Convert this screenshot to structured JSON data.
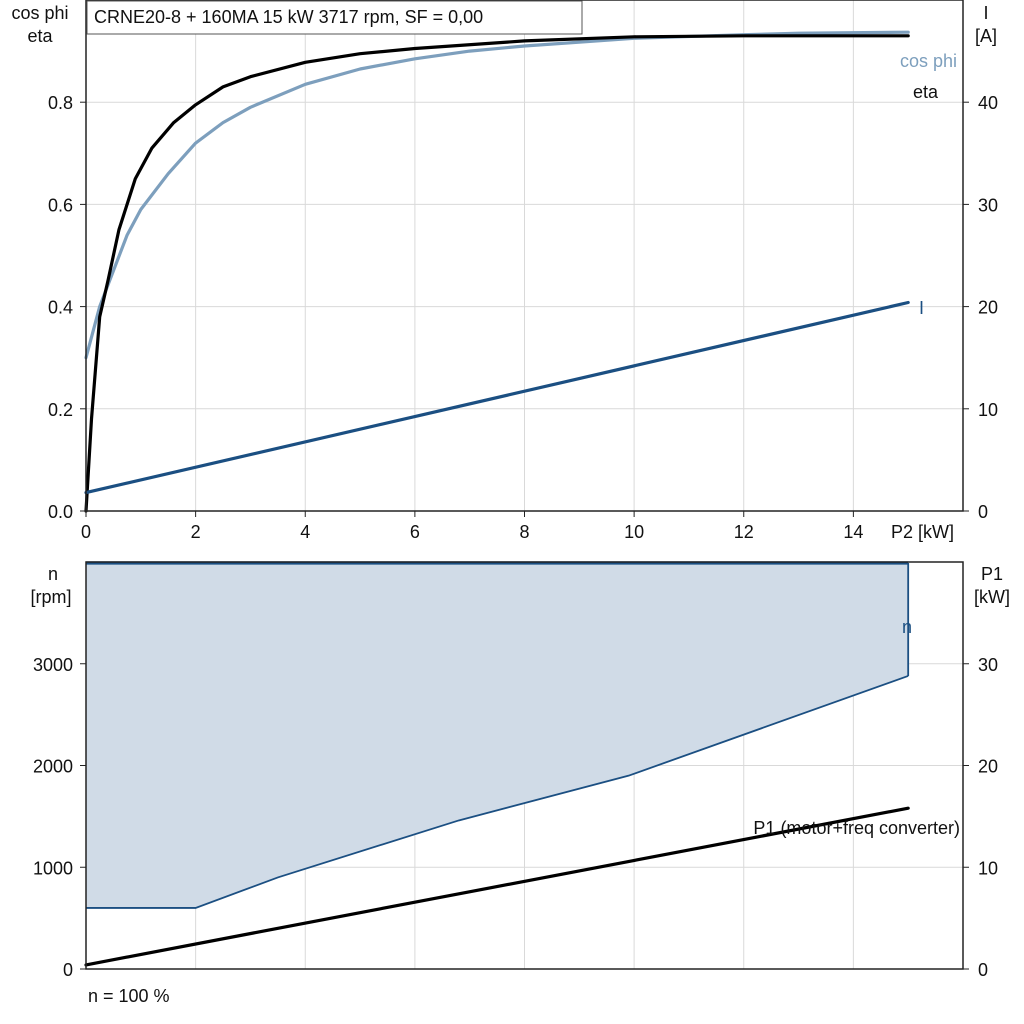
{
  "chart_data": [
    {
      "type": "line",
      "title": "CRNE20-8 + 160MA   15 kW   3717 rpm, SF = 0,00",
      "xlabel": "P2 [kW]",
      "xlim": [
        0,
        16
      ],
      "xticks": [
        "0",
        "2",
        "4",
        "6",
        "8",
        "10",
        "12",
        "14"
      ],
      "ylabel_left": [
        "cos phi",
        "eta"
      ],
      "ylim_left": [
        0,
        1.0
      ],
      "yticks_left": [
        "0.0",
        "0.2",
        "0.4",
        "0.6",
        "0.8"
      ],
      "ylabel_right": [
        "I",
        "[A]"
      ],
      "ylim_right": [
        0,
        50
      ],
      "yticks_right": [
        "0",
        "10",
        "20",
        "30",
        "40"
      ],
      "grid": true,
      "series": [
        {
          "name": "cos phi",
          "axis": "left",
          "color": "#7d9fbd",
          "x": [
            0,
            0.25,
            0.5,
            0.75,
            1,
            1.5,
            2,
            2.5,
            3,
            4,
            5,
            6,
            7,
            8,
            10,
            12,
            13,
            15
          ],
          "y": [
            0.3,
            0.4,
            0.47,
            0.54,
            0.59,
            0.66,
            0.72,
            0.76,
            0.79,
            0.835,
            0.865,
            0.885,
            0.9,
            0.91,
            0.925,
            0.932,
            0.935,
            0.937
          ]
        },
        {
          "name": "eta",
          "axis": "left",
          "color": "#000000",
          "x": [
            0,
            0.1,
            0.25,
            0.4,
            0.6,
            0.9,
            1.2,
            1.6,
            2,
            2.5,
            3,
            4,
            5,
            6,
            8,
            10,
            12,
            15
          ],
          "y": [
            0.0,
            0.18,
            0.38,
            0.45,
            0.55,
            0.65,
            0.71,
            0.76,
            0.795,
            0.83,
            0.85,
            0.878,
            0.895,
            0.905,
            0.92,
            0.928,
            0.93,
            0.93
          ]
        },
        {
          "name": "I",
          "axis": "right",
          "color": "#1b4f82",
          "x": [
            0,
            15
          ],
          "y": [
            1.8,
            20.4
          ]
        }
      ]
    },
    {
      "type": "area",
      "xlim": [
        0,
        16
      ],
      "ylabel_left": [
        "n",
        "[rpm]"
      ],
      "ylim_left": [
        0,
        4000
      ],
      "yticks_left": [
        "0",
        "1000",
        "2000",
        "3000"
      ],
      "ylabel_right": [
        "P1",
        "[kW]"
      ],
      "ylim_right": [
        0,
        40
      ],
      "yticks_right": [
        "0",
        "10",
        "20",
        "30"
      ],
      "grid": true,
      "series": [
        {
          "name": "n",
          "axis": "left",
          "color": "#1b4f82",
          "fill": "#d0dbe7",
          "x_upper": [
            0,
            15
          ],
          "y_upper": [
            3990,
            3990
          ],
          "x_lower": [
            0,
            2,
            3.5,
            6.8,
            9.9,
            15
          ],
          "y_lower": [
            600,
            600,
            900,
            1460,
            1900,
            2880
          ]
        },
        {
          "name": "P1 (motor+freq converter)",
          "axis": "right",
          "color": "#000000",
          "x": [
            0,
            15
          ],
          "y": [
            0.4,
            15.8
          ]
        }
      ],
      "footnote": "n = 100 %"
    }
  ]
}
